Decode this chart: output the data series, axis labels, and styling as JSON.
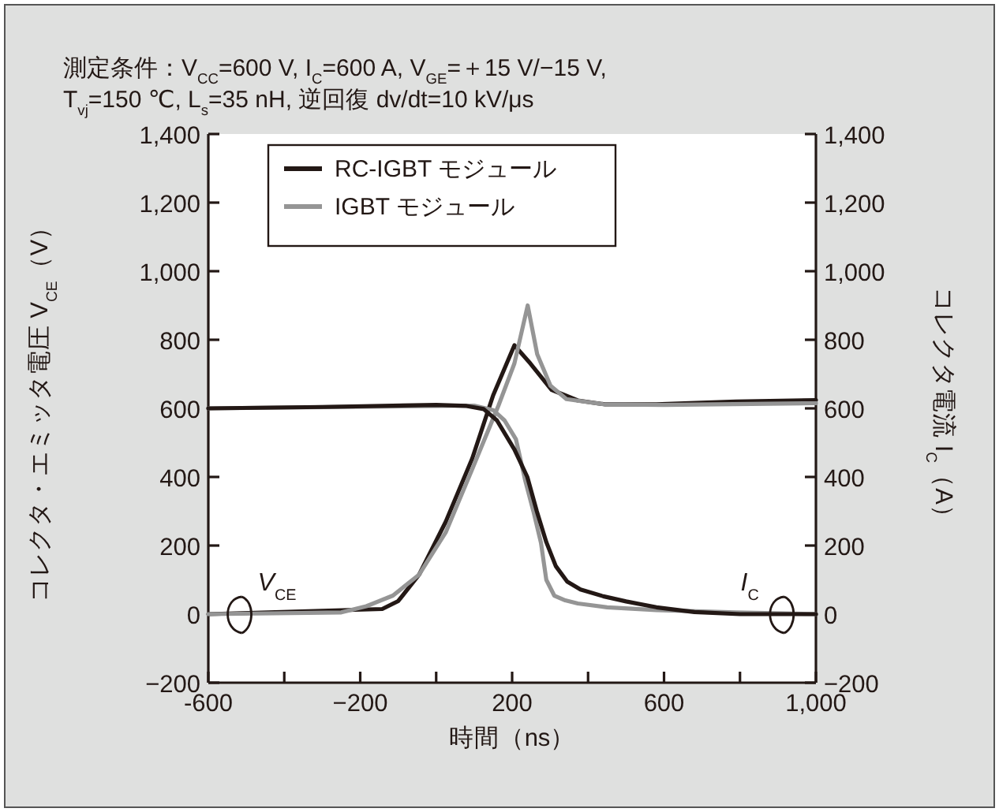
{
  "chart_data": {
    "type": "line",
    "title": "測定条件：V$_{CC}$=600 V, I$_{C}$=600 A, V$_{GE}$=＋15 V/−15 V,",
    "subtitle": "T$_{vj}$=150 ℃, L$_{s}$=35 nH, 逆回復 dv/dt=10 kV/μs",
    "xlabel": "時間（ns）",
    "ylabel": "コレクタ・エミッタ電圧 V$_{CE}$（V）",
    "y2label": "コレクタ電流 I$_{C}$（A）",
    "xlim": [
      -600,
      1000
    ],
    "xticks": [
      -600,
      {
        "value": -400,
        "label": null
      },
      {
        "value": -200,
        "label": "−200"
      },
      {
        "value": 0,
        "label": null
      },
      200,
      {
        "value": 400,
        "label": null
      },
      600,
      {
        "value": 800,
        "label": null
      },
      {
        "value": 1000,
        "label": "1,000"
      }
    ],
    "ylim": [
      -200,
      1400
    ],
    "yticks": [
      {
        "value": -200,
        "label": "−200"
      },
      0,
      200,
      400,
      600,
      800,
      {
        "value": 1000,
        "label": "1,000"
      },
      {
        "value": 1200,
        "label": "1,200"
      },
      {
        "value": 1400,
        "label": "1,400"
      }
    ],
    "y2lim": [
      -200,
      1400
    ],
    "y2ticks": [
      {
        "value": -200,
        "label": "−200"
      },
      0,
      200,
      400,
      600,
      800,
      {
        "value": 1000,
        "label": "1,000"
      },
      {
        "value": 1200,
        "label": "1,200"
      },
      {
        "value": 1400,
        "label": "1,400"
      }
    ],
    "grid": false,
    "legend": "top",
    "marker": "none",
    "line_style": "solid",
    "annotations": [
      {
        "text": "V$_{CE}$",
        "x": -470,
        "y": 0
      },
      {
        "text": "I$_{C}$",
        "x": 850,
        "y": 0
      }
    ],
    "series": [
      {
        "name": "RC-IGBT モジュール",
        "color": "#231815",
        "x": [
          -600,
          -142,
          -100,
          -45,
          25,
          95,
          150,
          206,
          248,
          304,
          373,
          443,
          580,
          790,
          1000
        ],
        "values": [
          0,
          15,
          38,
          115,
          269,
          454,
          638,
          784,
          731,
          654,
          623,
          612,
          612,
          620,
          624
        ]
      },
      {
        "name": "IGBT モジュール",
        "color": "#959595",
        "x": [
          -600,
          -250,
          -184,
          -114,
          -45,
          25,
          95,
          164,
          206,
          241,
          266,
          301,
          343,
          440,
          600,
          1000
        ],
        "values": [
          0,
          5,
          23,
          54,
          115,
          238,
          423,
          608,
          731,
          900,
          758,
          666,
          627,
          612,
          610,
          615
        ]
      },
      {
        "color": "#959595",
        "x": [
          -600,
          100,
          150,
          180,
          210,
          234,
          256,
          276,
          290,
          311,
          340,
          373,
          450,
          580,
          790,
          1000
        ],
        "values": [
          600,
          608,
          595,
          565,
          510,
          392,
          300,
          208,
          100,
          54,
          40,
          31,
          20,
          12,
          5,
          0
        ]
      },
      {
        "color": "#231815",
        "x": [
          -600,
          -300,
          0,
          80,
          125,
          160,
          206,
          240,
          265,
          290,
          315,
          345,
          380,
          440,
          500,
          580,
          680,
          800,
          1000
        ],
        "values": [
          600,
          604,
          610,
          607,
          598,
          565,
          480,
          400,
          300,
          210,
          140,
          95,
          72,
          52,
          37,
          20,
          6,
          0,
          0
        ]
      }
    ]
  }
}
